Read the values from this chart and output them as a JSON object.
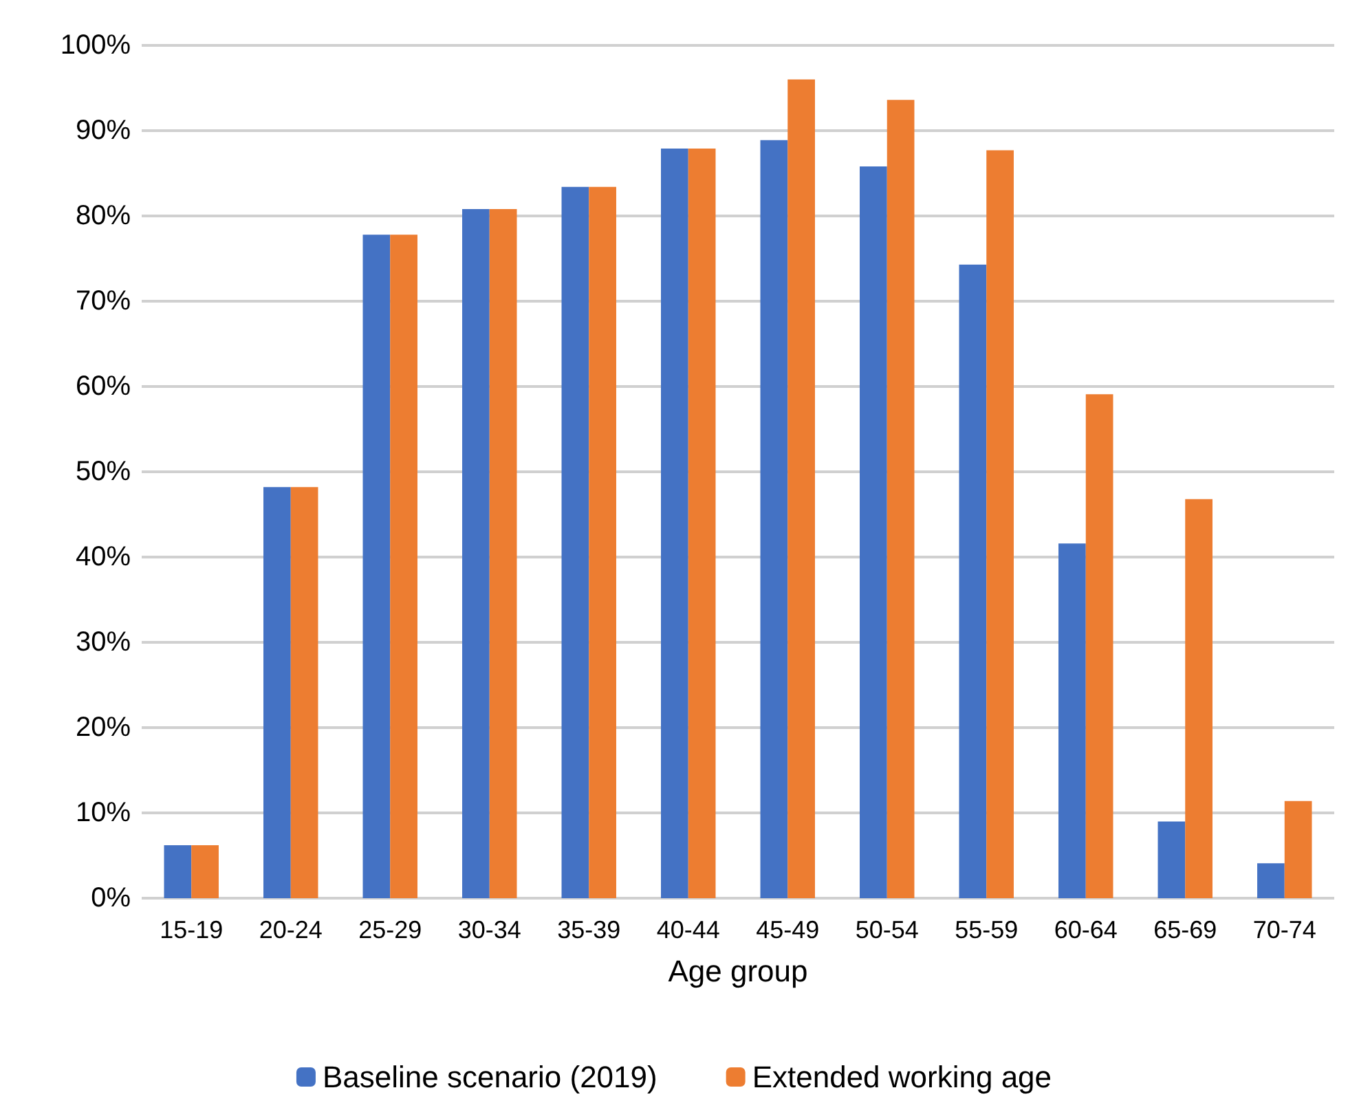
{
  "chart_data": {
    "type": "bar",
    "xlabel": "Age group",
    "categories": [
      "15-19",
      "20-24",
      "25-29",
      "30-34",
      "35-39",
      "40-44",
      "45-49",
      "50-54",
      "55-59",
      "60-64",
      "65-69",
      "70-74"
    ],
    "series": [
      {
        "name": "Baseline scenario (2019)",
        "color": "#4472c4",
        "values": [
          6.2,
          48.2,
          77.8,
          80.8,
          83.4,
          87.9,
          88.9,
          85.8,
          74.3,
          41.6,
          9.0,
          4.1
        ]
      },
      {
        "name": "Extended working age",
        "color": "#ed7d31",
        "values": [
          6.2,
          48.2,
          77.8,
          80.8,
          83.4,
          87.9,
          96.0,
          93.6,
          87.7,
          59.1,
          46.8,
          11.4
        ]
      }
    ],
    "ylim": [
      0,
      100
    ],
    "yticks": [
      {
        "value": 0,
        "label": "0%"
      },
      {
        "value": 10,
        "label": "10%"
      },
      {
        "value": 20,
        "label": "20%"
      },
      {
        "value": 30,
        "label": "30%"
      },
      {
        "value": 40,
        "label": "40%"
      },
      {
        "value": 50,
        "label": "50%"
      },
      {
        "value": 60,
        "label": "60%"
      },
      {
        "value": 70,
        "label": "70%"
      },
      {
        "value": 80,
        "label": "80%"
      },
      {
        "value": 90,
        "label": "90%"
      },
      {
        "value": 100,
        "label": "100%"
      }
    ],
    "grid": "y",
    "legend": "bottom"
  }
}
